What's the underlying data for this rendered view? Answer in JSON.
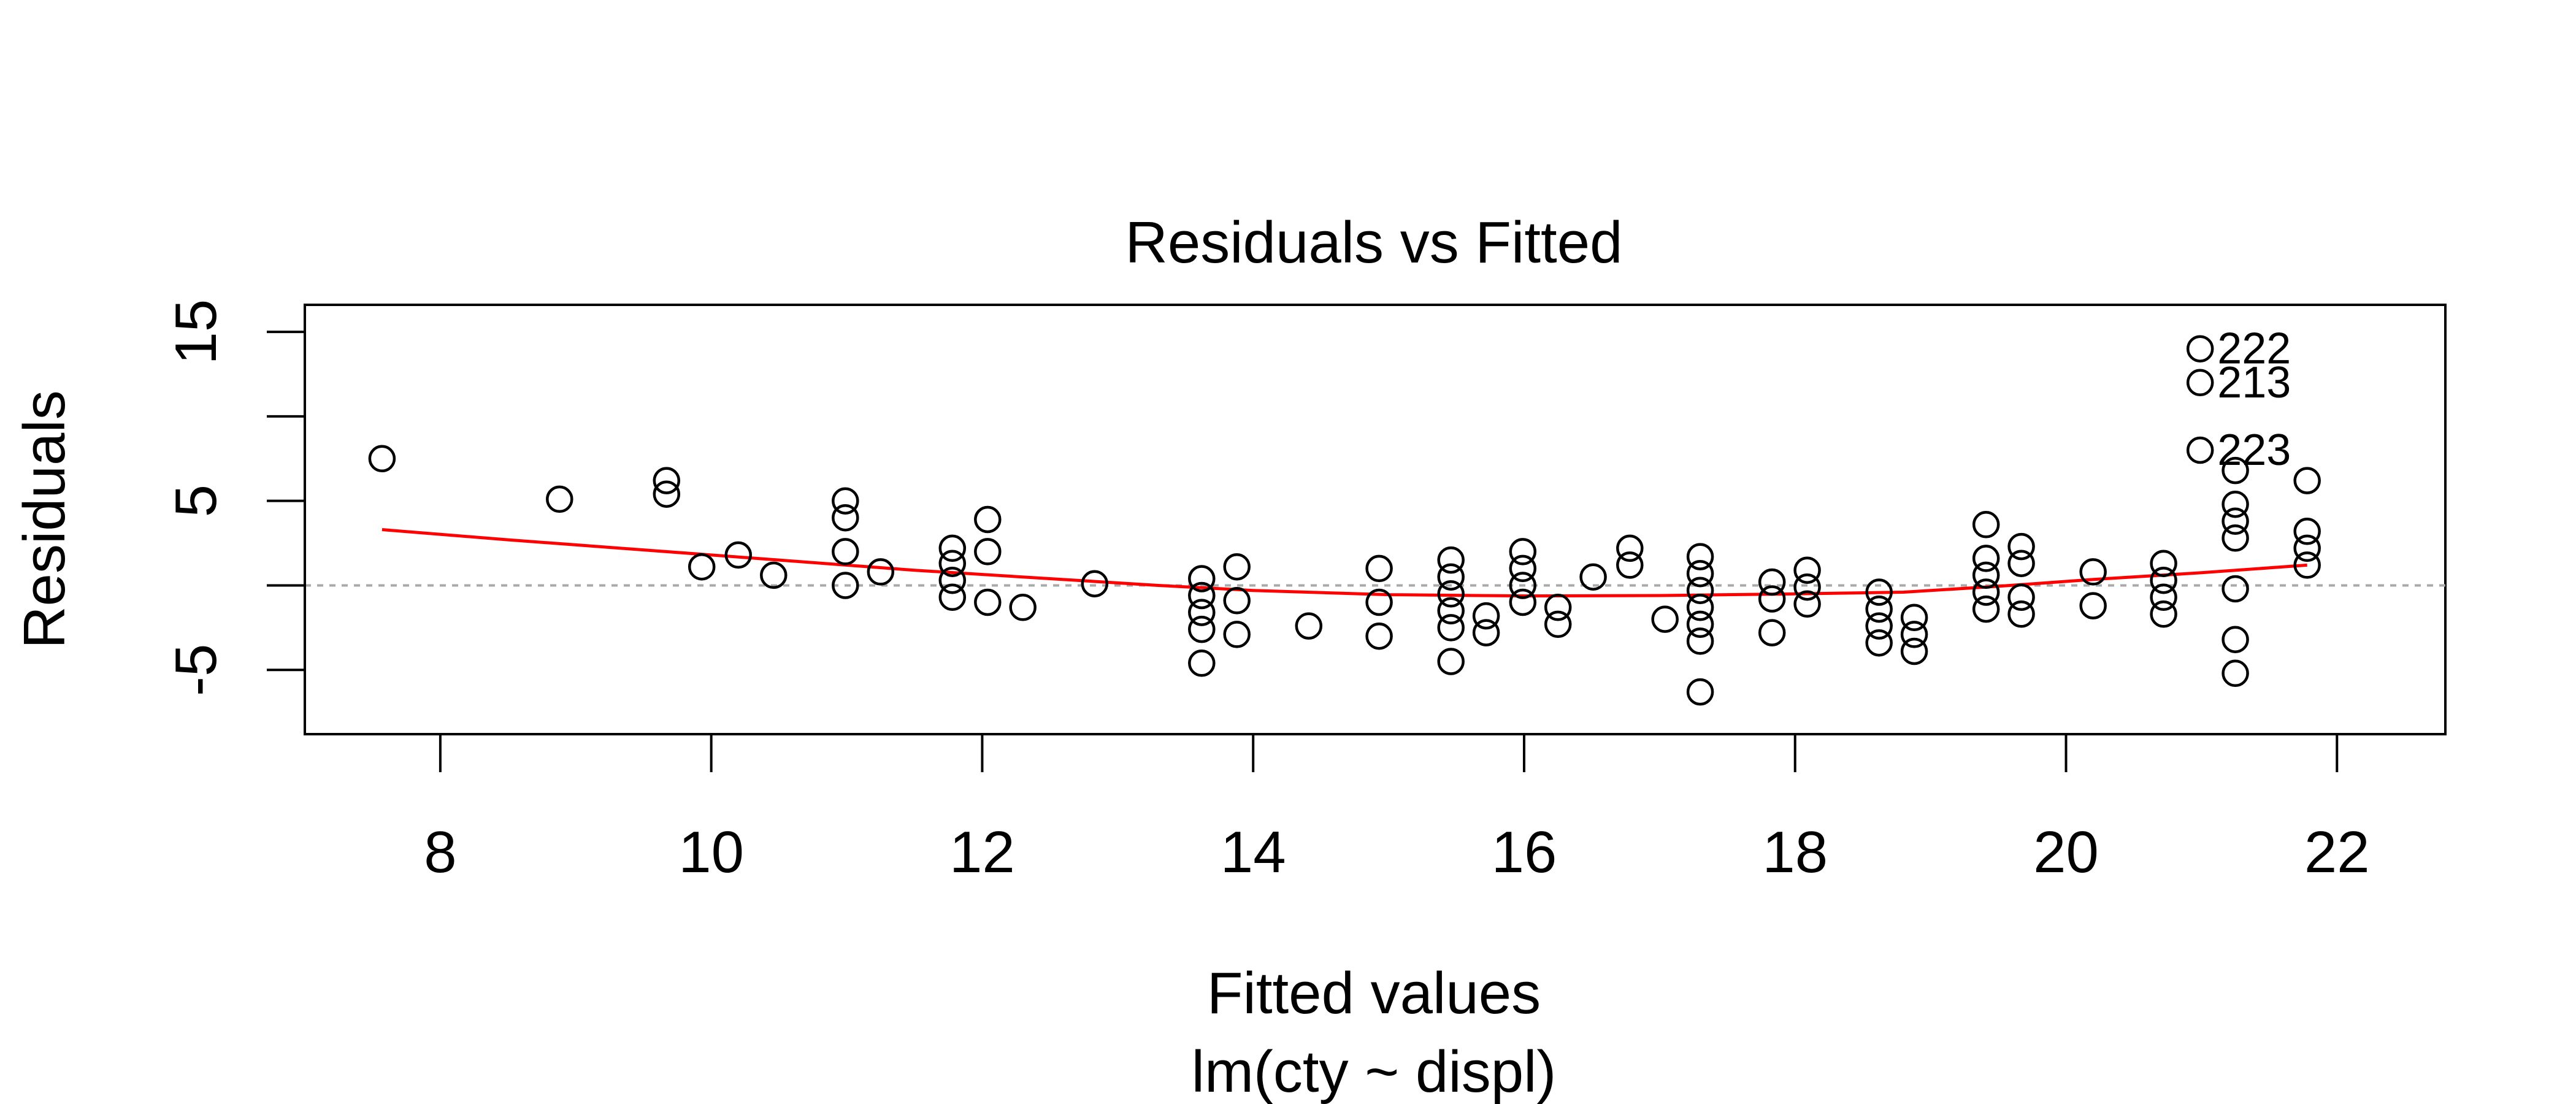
{
  "chart_data": {
    "type": "scatter",
    "title": "Residuals vs Fitted",
    "xlabel": "Fitted values",
    "subtitle": "lm(cty ~ displ)",
    "ylabel": "Residuals",
    "xlim": [
      7,
      22.8
    ],
    "ylim": [
      -8.8,
      16.6
    ],
    "x_ticks": [
      8,
      10,
      12,
      14,
      16,
      18,
      20,
      22
    ],
    "y_ticks": [
      -5,
      5,
      15
    ],
    "y_minor_ticks": [
      0,
      10
    ],
    "x_tick_labels": [
      "8",
      "10",
      "12",
      "14",
      "16",
      "18",
      "20",
      "22"
    ],
    "y_tick_labels": [
      "-5",
      "5",
      "15"
    ],
    "reference_line": {
      "y": 0,
      "style": "dotted",
      "color": "#aaaaaa"
    },
    "point_color": "#000000",
    "smooth_color": "#ff0000",
    "points": [
      [
        7.57,
        7.5
      ],
      [
        8.88,
        5.1
      ],
      [
        9.67,
        6.2
      ],
      [
        9.67,
        5.4
      ],
      [
        9.93,
        1.1
      ],
      [
        10.2,
        1.8
      ],
      [
        10.46,
        0.6
      ],
      [
        10.99,
        5.0
      ],
      [
        10.99,
        4.0
      ],
      [
        10.99,
        2.0
      ],
      [
        10.99,
        0.0
      ],
      [
        11.25,
        0.8
      ],
      [
        11.78,
        2.2
      ],
      [
        11.78,
        1.3
      ],
      [
        11.78,
        0.3
      ],
      [
        11.78,
        -0.7
      ],
      [
        12.04,
        3.9
      ],
      [
        12.04,
        2.0
      ],
      [
        12.04,
        -1.0
      ],
      [
        12.3,
        -1.3
      ],
      [
        12.83,
        0.1
      ],
      [
        13.62,
        0.4
      ],
      [
        13.62,
        -0.6
      ],
      [
        13.62,
        -1.6
      ],
      [
        13.62,
        -2.6
      ],
      [
        13.62,
        -4.6
      ],
      [
        13.88,
        1.1
      ],
      [
        13.88,
        -0.9
      ],
      [
        13.88,
        -2.9
      ],
      [
        14.41,
        -2.4
      ],
      [
        14.93,
        1.0
      ],
      [
        14.93,
        -1.0
      ],
      [
        14.93,
        -3.0
      ],
      [
        15.46,
        1.5
      ],
      [
        15.46,
        0.5
      ],
      [
        15.46,
        -0.5
      ],
      [
        15.46,
        -1.5
      ],
      [
        15.46,
        -2.5
      ],
      [
        15.46,
        -4.5
      ],
      [
        15.72,
        -1.8
      ],
      [
        15.72,
        -2.8
      ],
      [
        15.99,
        2.0
      ],
      [
        15.99,
        1.0
      ],
      [
        15.99,
        0.0
      ],
      [
        15.99,
        -1.0
      ],
      [
        16.25,
        -1.3
      ],
      [
        16.25,
        -2.3
      ],
      [
        16.51,
        0.5
      ],
      [
        16.78,
        2.2
      ],
      [
        16.78,
        1.2
      ],
      [
        17.04,
        -2.0
      ],
      [
        17.3,
        1.7
      ],
      [
        17.3,
        0.7
      ],
      [
        17.3,
        -0.3
      ],
      [
        17.3,
        -1.3
      ],
      [
        17.3,
        -2.3
      ],
      [
        17.3,
        -3.3
      ],
      [
        17.3,
        -6.3
      ],
      [
        17.83,
        0.2
      ],
      [
        17.83,
        -0.8
      ],
      [
        17.83,
        -2.8
      ],
      [
        18.09,
        0.9
      ],
      [
        18.09,
        -0.1
      ],
      [
        18.09,
        -1.1
      ],
      [
        18.62,
        -0.4
      ],
      [
        18.62,
        -1.4
      ],
      [
        18.62,
        -2.4
      ],
      [
        18.62,
        -3.4
      ],
      [
        18.88,
        -1.9
      ],
      [
        18.88,
        -2.9
      ],
      [
        18.88,
        -3.9
      ],
      [
        19.41,
        3.6
      ],
      [
        19.41,
        1.6
      ],
      [
        19.41,
        0.6
      ],
      [
        19.41,
        -0.4
      ],
      [
        19.41,
        -1.4
      ],
      [
        19.67,
        2.3
      ],
      [
        19.67,
        1.3
      ],
      [
        19.67,
        -0.7
      ],
      [
        19.67,
        -1.7
      ],
      [
        20.2,
        0.8
      ],
      [
        20.2,
        -1.2
      ],
      [
        20.72,
        1.3
      ],
      [
        20.72,
        0.3
      ],
      [
        20.72,
        -0.7
      ],
      [
        20.72,
        -1.7
      ],
      [
        20.99,
        14.0
      ],
      [
        20.99,
        12.0
      ],
      [
        20.99,
        8.0
      ],
      [
        21.25,
        6.8
      ],
      [
        21.25,
        4.8
      ],
      [
        21.25,
        3.8
      ],
      [
        21.25,
        2.8
      ],
      [
        21.25,
        -0.2
      ],
      [
        21.25,
        -3.2
      ],
      [
        21.25,
        -5.2
      ],
      [
        21.78,
        6.2
      ],
      [
        21.78,
        3.2
      ],
      [
        21.78,
        2.2
      ],
      [
        21.78,
        1.2
      ]
    ],
    "labeled_points": [
      {
        "label": "222",
        "x": 20.99,
        "y": 14.0
      },
      {
        "label": "213",
        "x": 20.99,
        "y": 12.0
      },
      {
        "label": "223",
        "x": 20.99,
        "y": 8.0
      }
    ],
    "smooth_line": [
      [
        7.57,
        3.3
      ],
      [
        8.5,
        2.7
      ],
      [
        9.5,
        2.1
      ],
      [
        10.5,
        1.5
      ],
      [
        11.5,
        0.9
      ],
      [
        12.5,
        0.4
      ],
      [
        13.3,
        0.0
      ],
      [
        14.0,
        -0.3
      ],
      [
        15.0,
        -0.55
      ],
      [
        16.0,
        -0.62
      ],
      [
        17.0,
        -0.6
      ],
      [
        18.0,
        -0.5
      ],
      [
        18.8,
        -0.4
      ],
      [
        19.5,
        -0.05
      ],
      [
        20.2,
        0.35
      ],
      [
        21.0,
        0.75
      ],
      [
        21.78,
        1.2
      ]
    ]
  }
}
